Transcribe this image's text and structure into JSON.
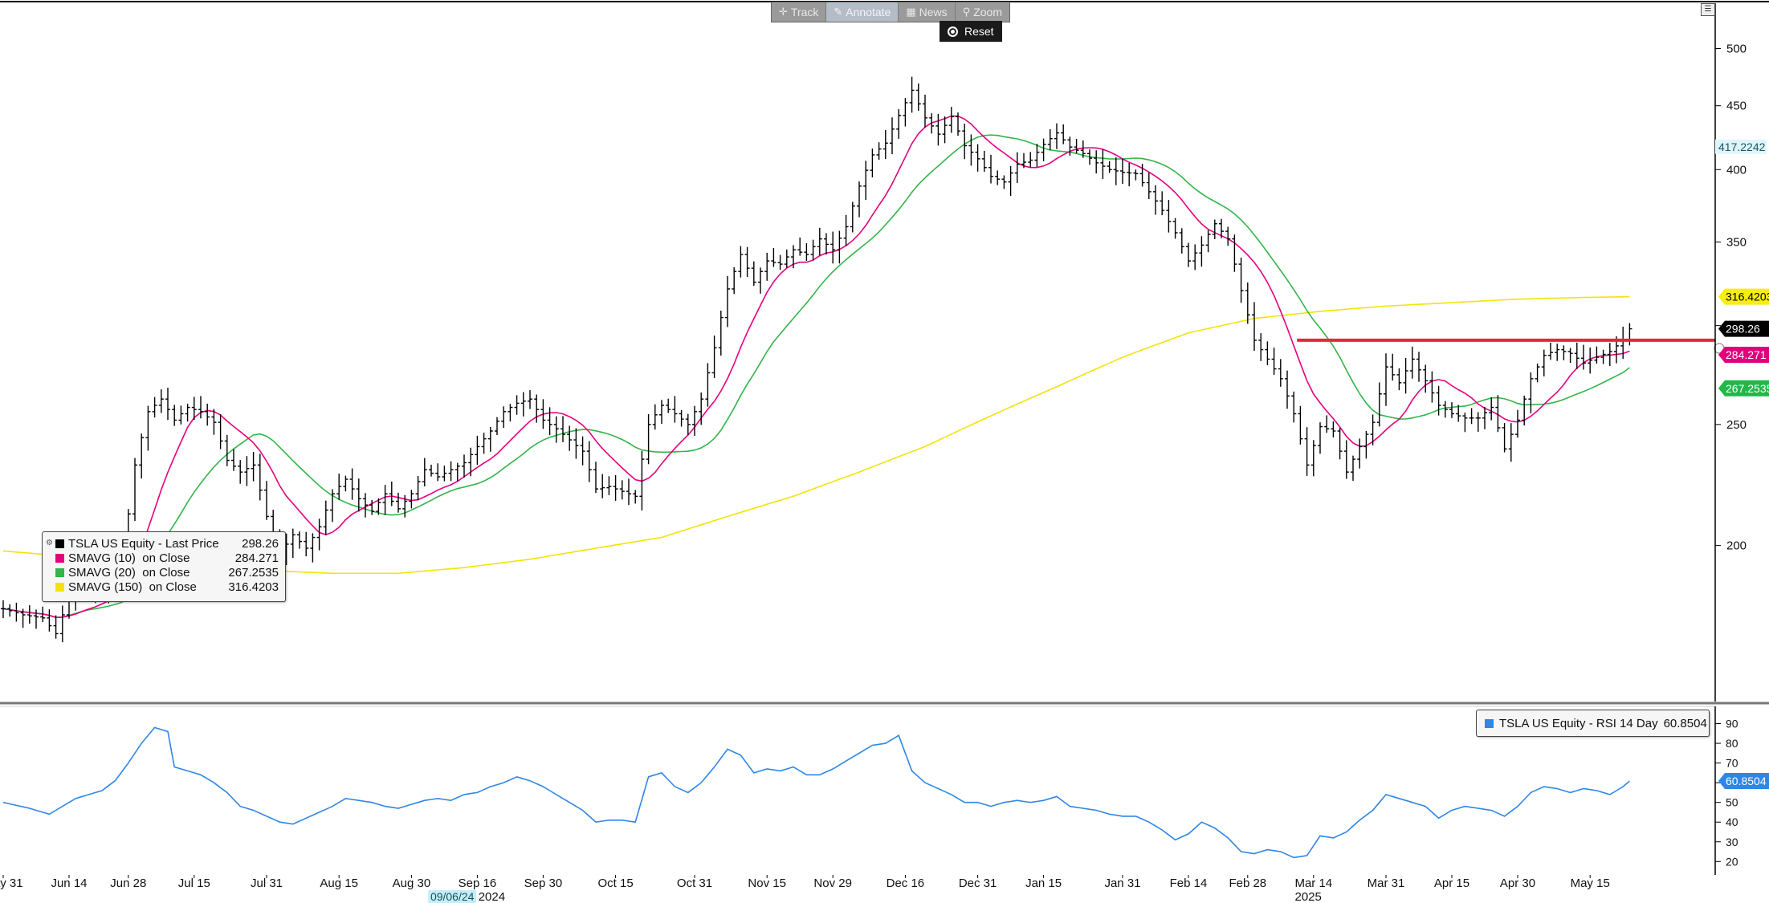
{
  "toolbar": {
    "track_label": "Track",
    "annotate_label": "Annotate",
    "news_label": "News",
    "zoom_label": "Zoom",
    "reset_label": "Reset"
  },
  "colors": {
    "price": "#000000",
    "sma10": "#e6007e",
    "sma20": "#33b54a",
    "sma150": "#f2e40a",
    "rsi": "#2f86e6",
    "resistance": "#e8253f"
  },
  "price_legend": {
    "items": [
      {
        "name": "TSLA US Equity - Last Price",
        "value": "298.26",
        "color": "#000000"
      },
      {
        "name": "SMAVG (10)  on Close",
        "value": "284.271",
        "color": "#e6007e"
      },
      {
        "name": "SMAVG (20)  on Close",
        "value": "267.2535",
        "color": "#33b54a"
      },
      {
        "name": "SMAVG (150)  on Close",
        "value": "316.4203",
        "color": "#f2e40a"
      }
    ]
  },
  "rsi_legend": {
    "name": "TSLA US Equity - RSI 14 Day",
    "value": "60.8504",
    "color": "#2f86e6"
  },
  "chart_data": [
    {
      "type": "ohlc",
      "title": "",
      "y_axis": {
        "scale": "log",
        "range": [
          150,
          520
        ],
        "ticks": [
          200,
          250,
          300,
          350,
          400,
          450,
          500
        ],
        "position": "right"
      },
      "x_ticks": [
        {
          "label": "May 31",
          "index": 0
        },
        {
          "label": "Jun 14",
          "index": 10
        },
        {
          "label": "Jun 28",
          "index": 19
        },
        {
          "label": "Jul 15",
          "index": 29
        },
        {
          "label": "Jul 31",
          "index": 40
        },
        {
          "label": "Aug 15",
          "index": 51
        },
        {
          "label": "Aug 30",
          "index": 62
        },
        {
          "label": "Sep 16",
          "index": 72
        },
        {
          "label": "Sep 30",
          "index": 82
        },
        {
          "label": "Oct 15",
          "index": 93
        },
        {
          "label": "Oct 31",
          "index": 105
        },
        {
          "label": "Nov 15",
          "index": 116
        },
        {
          "label": "Nov 29",
          "index": 126
        },
        {
          "label": "Dec 16",
          "index": 137
        },
        {
          "label": "Dec 31",
          "index": 148
        },
        {
          "label": "Jan 15",
          "index": 158
        },
        {
          "label": "Jan 31",
          "index": 170
        },
        {
          "label": "Feb 14",
          "index": 180
        },
        {
          "label": "Feb 28",
          "index": 189
        },
        {
          "label": "Mar 14",
          "index": 199
        },
        {
          "label": "Mar 31",
          "index": 210
        },
        {
          "label": "Apr 15",
          "index": 220
        },
        {
          "label": "Apr 30",
          "index": 230
        },
        {
          "label": "May 15",
          "index": 241
        }
      ],
      "year_labels": [
        {
          "label": "2024",
          "index": 72
        },
        {
          "label": "2025",
          "index": 196
        }
      ],
      "cursor_date": {
        "label": "09/06/24",
        "index": 66
      },
      "price_anchors": [
        [
          0,
          178
        ],
        [
          3,
          176
        ],
        [
          6,
          175
        ],
        [
          8,
          170
        ],
        [
          10,
          182
        ],
        [
          12,
          185
        ],
        [
          14,
          183
        ],
        [
          16,
          186
        ],
        [
          18,
          192
        ],
        [
          20,
          232
        ],
        [
          22,
          256
        ],
        [
          24,
          262
        ],
        [
          26,
          252
        ],
        [
          28,
          258
        ],
        [
          30,
          256
        ],
        [
          32,
          251
        ],
        [
          34,
          234
        ],
        [
          36,
          229
        ],
        [
          38,
          232
        ],
        [
          40,
          211
        ],
        [
          42,
          197
        ],
        [
          44,
          204
        ],
        [
          46,
          199
        ],
        [
          48,
          207
        ],
        [
          50,
          220
        ],
        [
          52,
          226
        ],
        [
          54,
          218
        ],
        [
          56,
          213
        ],
        [
          58,
          220
        ],
        [
          60,
          214
        ],
        [
          62,
          220
        ],
        [
          64,
          230
        ],
        [
          66,
          227
        ],
        [
          68,
          230
        ],
        [
          70,
          233
        ],
        [
          72,
          240
        ],
        [
          74,
          247
        ],
        [
          76,
          256
        ],
        [
          78,
          260
        ],
        [
          80,
          262
        ],
        [
          82,
          252
        ],
        [
          84,
          248
        ],
        [
          86,
          243
        ],
        [
          88,
          238
        ],
        [
          90,
          222
        ],
        [
          92,
          223
        ],
        [
          94,
          221
        ],
        [
          96,
          219
        ],
        [
          98,
          250
        ],
        [
          100,
          259
        ],
        [
          102,
          255
        ],
        [
          104,
          250
        ],
        [
          106,
          262
        ],
        [
          108,
          288
        ],
        [
          110,
          321
        ],
        [
          112,
          342
        ],
        [
          114,
          325
        ],
        [
          116,
          338
        ],
        [
          118,
          336
        ],
        [
          120,
          345
        ],
        [
          122,
          342
        ],
        [
          124,
          352
        ],
        [
          126,
          345
        ],
        [
          128,
          360
        ],
        [
          130,
          388
        ],
        [
          132,
          411
        ],
        [
          134,
          420
        ],
        [
          136,
          442
        ],
        [
          138,
          463
        ],
        [
          140,
          440
        ],
        [
          142,
          427
        ],
        [
          144,
          441
        ],
        [
          146,
          418
        ],
        [
          148,
          408
        ],
        [
          150,
          395
        ],
        [
          152,
          391
        ],
        [
          154,
          404
        ],
        [
          156,
          407
        ],
        [
          158,
          419
        ],
        [
          160,
          428
        ],
        [
          162,
          417
        ],
        [
          164,
          412
        ],
        [
          166,
          405
        ],
        [
          168,
          400
        ],
        [
          170,
          398
        ],
        [
          172,
          397
        ],
        [
          174,
          384
        ],
        [
          176,
          371
        ],
        [
          178,
          356
        ],
        [
          180,
          338
        ],
        [
          182,
          348
        ],
        [
          184,
          362
        ],
        [
          186,
          352
        ],
        [
          188,
          320
        ],
        [
          190,
          292
        ],
        [
          192,
          282
        ],
        [
          194,
          272
        ],
        [
          196,
          255
        ],
        [
          198,
          232
        ],
        [
          200,
          249
        ],
        [
          202,
          247
        ],
        [
          204,
          229
        ],
        [
          206,
          240
        ],
        [
          208,
          251
        ],
        [
          210,
          278
        ],
        [
          212,
          270
        ],
        [
          214,
          282
        ],
        [
          216,
          271
        ],
        [
          218,
          259
        ],
        [
          220,
          255
        ],
        [
          222,
          253
        ],
        [
          224,
          253
        ],
        [
          226,
          258
        ],
        [
          228,
          239
        ],
        [
          230,
          252
        ],
        [
          232,
          272
        ],
        [
          234,
          284
        ],
        [
          236,
          287
        ],
        [
          238,
          285
        ],
        [
          240,
          280
        ],
        [
          242,
          283
        ],
        [
          244,
          286
        ],
        [
          246,
          292
        ],
        [
          247,
          298.26
        ]
      ],
      "sma150_anchors": [
        [
          0,
          198
        ],
        [
          10,
          196
        ],
        [
          20,
          194
        ],
        [
          30,
          192
        ],
        [
          40,
          191
        ],
        [
          50,
          190
        ],
        [
          60,
          190
        ],
        [
          70,
          192
        ],
        [
          80,
          195
        ],
        [
          90,
          199
        ],
        [
          100,
          203
        ],
        [
          110,
          211
        ],
        [
          120,
          219
        ],
        [
          130,
          229
        ],
        [
          140,
          240
        ],
        [
          150,
          254
        ],
        [
          160,
          268
        ],
        [
          170,
          283
        ],
        [
          180,
          296
        ],
        [
          190,
          304
        ],
        [
          200,
          308
        ],
        [
          210,
          311
        ],
        [
          220,
          313
        ],
        [
          230,
          315
        ],
        [
          240,
          316
        ],
        [
          247,
          316.4203
        ]
      ],
      "resistance_level": 292,
      "resistance_from_index": 196,
      "series": [
        {
          "name": "TSLA US Equity - Last Price",
          "last": 298.26
        },
        {
          "name": "SMAVG (10)  on Close",
          "last": 284.271
        },
        {
          "name": "SMAVG (20)  on Close",
          "last": 267.2535
        },
        {
          "name": "SMAVG (150)  on Close",
          "last": 316.4203
        }
      ],
      "axis_tags": [
        {
          "label": "417.2242",
          "value": 417.2242,
          "style": "cyan"
        },
        {
          "label": "316.4203",
          "value": 316.4203,
          "style": "yellow"
        },
        {
          "label": "298.26",
          "value": 298.26,
          "style": "black"
        },
        {
          "label": "284.271",
          "value": 284.271,
          "style": "magenta"
        },
        {
          "label": "267.2535",
          "value": 267.2535,
          "style": "green"
        }
      ]
    },
    {
      "type": "line",
      "title": "",
      "y_axis": {
        "range": [
          15,
          92
        ],
        "ticks": [
          20,
          30,
          40,
          50,
          60,
          70,
          80,
          90
        ],
        "position": "right"
      },
      "rsi_anchors": [
        [
          0,
          50
        ],
        [
          4,
          47
        ],
        [
          7,
          44
        ],
        [
          9,
          48
        ],
        [
          11,
          52
        ],
        [
          13,
          54
        ],
        [
          15,
          56
        ],
        [
          17,
          61
        ],
        [
          19,
          70
        ],
        [
          21,
          80
        ],
        [
          23,
          88
        ],
        [
          25,
          86
        ],
        [
          26,
          68
        ],
        [
          28,
          66
        ],
        [
          30,
          64
        ],
        [
          32,
          60
        ],
        [
          34,
          55
        ],
        [
          36,
          48
        ],
        [
          38,
          46
        ],
        [
          40,
          43
        ],
        [
          42,
          40
        ],
        [
          44,
          39
        ],
        [
          46,
          42
        ],
        [
          48,
          45
        ],
        [
          50,
          48
        ],
        [
          52,
          52
        ],
        [
          54,
          51
        ],
        [
          56,
          50
        ],
        [
          58,
          48
        ],
        [
          60,
          47
        ],
        [
          62,
          49
        ],
        [
          64,
          51
        ],
        [
          66,
          52
        ],
        [
          68,
          51
        ],
        [
          70,
          54
        ],
        [
          72,
          55
        ],
        [
          74,
          58
        ],
        [
          76,
          60
        ],
        [
          78,
          63
        ],
        [
          80,
          61
        ],
        [
          82,
          58
        ],
        [
          84,
          54
        ],
        [
          86,
          50
        ],
        [
          88,
          46
        ],
        [
          90,
          40
        ],
        [
          92,
          41
        ],
        [
          94,
          41
        ],
        [
          96,
          40
        ],
        [
          98,
          63
        ],
        [
          100,
          65
        ],
        [
          102,
          58
        ],
        [
          104,
          55
        ],
        [
          106,
          60
        ],
        [
          108,
          68
        ],
        [
          110,
          77
        ],
        [
          112,
          74
        ],
        [
          114,
          65
        ],
        [
          116,
          67
        ],
        [
          118,
          66
        ],
        [
          120,
          68
        ],
        [
          122,
          64
        ],
        [
          124,
          64
        ],
        [
          126,
          67
        ],
        [
          128,
          71
        ],
        [
          130,
          75
        ],
        [
          132,
          79
        ],
        [
          134,
          80
        ],
        [
          136,
          84
        ],
        [
          138,
          66
        ],
        [
          140,
          60
        ],
        [
          142,
          57
        ],
        [
          144,
          54
        ],
        [
          146,
          50
        ],
        [
          148,
          50
        ],
        [
          150,
          48
        ],
        [
          152,
          50
        ],
        [
          154,
          51
        ],
        [
          156,
          50
        ],
        [
          158,
          51
        ],
        [
          160,
          53
        ],
        [
          162,
          48
        ],
        [
          164,
          47
        ],
        [
          166,
          46
        ],
        [
          168,
          44
        ],
        [
          170,
          43
        ],
        [
          172,
          43
        ],
        [
          174,
          40
        ],
        [
          176,
          36
        ],
        [
          178,
          31
        ],
        [
          180,
          34
        ],
        [
          182,
          40
        ],
        [
          184,
          37
        ],
        [
          186,
          32
        ],
        [
          188,
          25
        ],
        [
          190,
          24
        ],
        [
          192,
          26
        ],
        [
          194,
          25
        ],
        [
          196,
          22
        ],
        [
          198,
          23
        ],
        [
          200,
          33
        ],
        [
          202,
          32
        ],
        [
          204,
          35
        ],
        [
          206,
          41
        ],
        [
          208,
          46
        ],
        [
          210,
          54
        ],
        [
          212,
          52
        ],
        [
          214,
          50
        ],
        [
          216,
          48
        ],
        [
          218,
          42
        ],
        [
          220,
          46
        ],
        [
          222,
          48
        ],
        [
          224,
          47
        ],
        [
          226,
          46
        ],
        [
          228,
          43
        ],
        [
          230,
          48
        ],
        [
          232,
          55
        ],
        [
          234,
          58
        ],
        [
          236,
          57
        ],
        [
          238,
          55
        ],
        [
          240,
          57
        ],
        [
          242,
          56
        ],
        [
          244,
          54
        ],
        [
          246,
          58
        ],
        [
          247,
          60.8504
        ]
      ],
      "series": [
        {
          "name": "TSLA US Equity - RSI 14 Day",
          "last": 60.8504
        }
      ],
      "axis_tags": [
        {
          "label": "60.8504",
          "value": 60.8504,
          "style": "blue"
        }
      ]
    }
  ]
}
